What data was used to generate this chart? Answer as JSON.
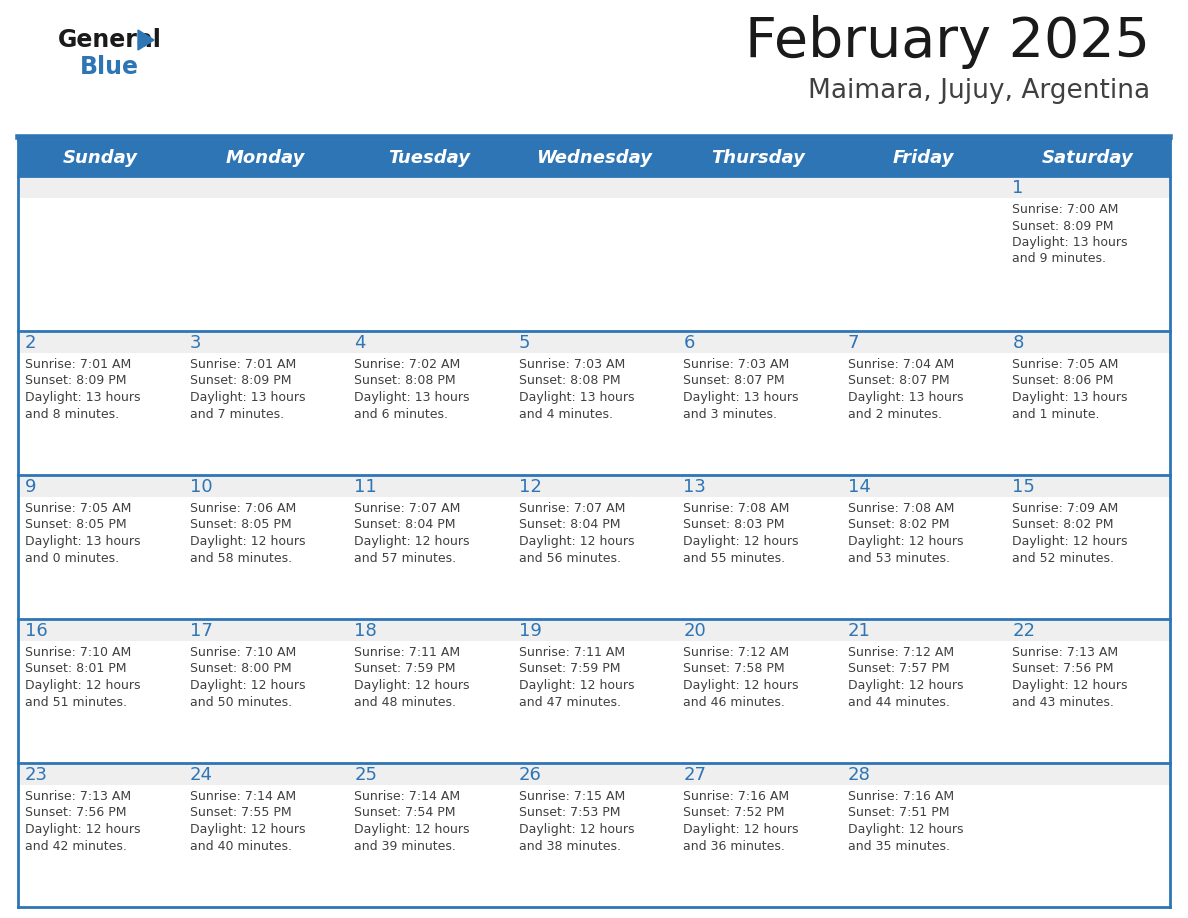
{
  "title": "February 2025",
  "subtitle": "Maimara, Jujuy, Argentina",
  "days_of_week": [
    "Sunday",
    "Monday",
    "Tuesday",
    "Wednesday",
    "Thursday",
    "Friday",
    "Saturday"
  ],
  "header_bg": "#2E75B6",
  "header_text": "#FFFFFF",
  "cell_bg_strip": "#EFEFEF",
  "cell_bg_white": "#FFFFFF",
  "border_color": "#2E75B6",
  "day_num_color": "#2E75B6",
  "info_text_color": "#404040",
  "title_color": "#1A1A1A",
  "subtitle_color": "#404040",
  "logo_general_color": "#1A1A1A",
  "logo_blue_color": "#2E75B6",
  "calendar_data": [
    [
      null,
      null,
      null,
      null,
      null,
      null,
      {
        "day": 1,
        "sunrise": "7:00 AM",
        "sunset": "8:09 PM",
        "daylight": "13 hours and 9 minutes."
      }
    ],
    [
      {
        "day": 2,
        "sunrise": "7:01 AM",
        "sunset": "8:09 PM",
        "daylight": "13 hours and 8 minutes."
      },
      {
        "day": 3,
        "sunrise": "7:01 AM",
        "sunset": "8:09 PM",
        "daylight": "13 hours and 7 minutes."
      },
      {
        "day": 4,
        "sunrise": "7:02 AM",
        "sunset": "8:08 PM",
        "daylight": "13 hours and 6 minutes."
      },
      {
        "day": 5,
        "sunrise": "7:03 AM",
        "sunset": "8:08 PM",
        "daylight": "13 hours and 4 minutes."
      },
      {
        "day": 6,
        "sunrise": "7:03 AM",
        "sunset": "8:07 PM",
        "daylight": "13 hours and 3 minutes."
      },
      {
        "day": 7,
        "sunrise": "7:04 AM",
        "sunset": "8:07 PM",
        "daylight": "13 hours and 2 minutes."
      },
      {
        "day": 8,
        "sunrise": "7:05 AM",
        "sunset": "8:06 PM",
        "daylight": "13 hours and 1 minute."
      }
    ],
    [
      {
        "day": 9,
        "sunrise": "7:05 AM",
        "sunset": "8:05 PM",
        "daylight": "13 hours and 0 minutes."
      },
      {
        "day": 10,
        "sunrise": "7:06 AM",
        "sunset": "8:05 PM",
        "daylight": "12 hours and 58 minutes."
      },
      {
        "day": 11,
        "sunrise": "7:07 AM",
        "sunset": "8:04 PM",
        "daylight": "12 hours and 57 minutes."
      },
      {
        "day": 12,
        "sunrise": "7:07 AM",
        "sunset": "8:04 PM",
        "daylight": "12 hours and 56 minutes."
      },
      {
        "day": 13,
        "sunrise": "7:08 AM",
        "sunset": "8:03 PM",
        "daylight": "12 hours and 55 minutes."
      },
      {
        "day": 14,
        "sunrise": "7:08 AM",
        "sunset": "8:02 PM",
        "daylight": "12 hours and 53 minutes."
      },
      {
        "day": 15,
        "sunrise": "7:09 AM",
        "sunset": "8:02 PM",
        "daylight": "12 hours and 52 minutes."
      }
    ],
    [
      {
        "day": 16,
        "sunrise": "7:10 AM",
        "sunset": "8:01 PM",
        "daylight": "12 hours and 51 minutes."
      },
      {
        "day": 17,
        "sunrise": "7:10 AM",
        "sunset": "8:00 PM",
        "daylight": "12 hours and 50 minutes."
      },
      {
        "day": 18,
        "sunrise": "7:11 AM",
        "sunset": "7:59 PM",
        "daylight": "12 hours and 48 minutes."
      },
      {
        "day": 19,
        "sunrise": "7:11 AM",
        "sunset": "7:59 PM",
        "daylight": "12 hours and 47 minutes."
      },
      {
        "day": 20,
        "sunrise": "7:12 AM",
        "sunset": "7:58 PM",
        "daylight": "12 hours and 46 minutes."
      },
      {
        "day": 21,
        "sunrise": "7:12 AM",
        "sunset": "7:57 PM",
        "daylight": "12 hours and 44 minutes."
      },
      {
        "day": 22,
        "sunrise": "7:13 AM",
        "sunset": "7:56 PM",
        "daylight": "12 hours and 43 minutes."
      }
    ],
    [
      {
        "day": 23,
        "sunrise": "7:13 AM",
        "sunset": "7:56 PM",
        "daylight": "12 hours and 42 minutes."
      },
      {
        "day": 24,
        "sunrise": "7:14 AM",
        "sunset": "7:55 PM",
        "daylight": "12 hours and 40 minutes."
      },
      {
        "day": 25,
        "sunrise": "7:14 AM",
        "sunset": "7:54 PM",
        "daylight": "12 hours and 39 minutes."
      },
      {
        "day": 26,
        "sunrise": "7:15 AM",
        "sunset": "7:53 PM",
        "daylight": "12 hours and 38 minutes."
      },
      {
        "day": 27,
        "sunrise": "7:16 AM",
        "sunset": "7:52 PM",
        "daylight": "12 hours and 36 minutes."
      },
      {
        "day": 28,
        "sunrise": "7:16 AM",
        "sunset": "7:51 PM",
        "daylight": "12 hours and 35 minutes."
      },
      null
    ]
  ]
}
